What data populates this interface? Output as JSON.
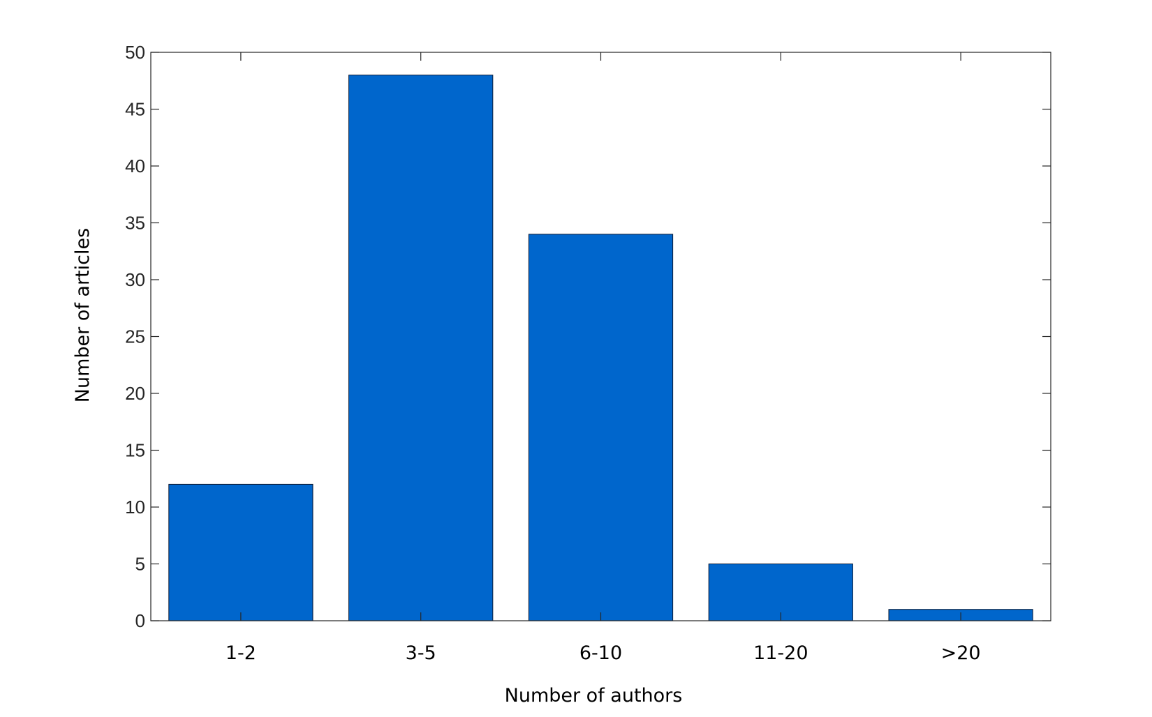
{
  "chart_data": {
    "type": "bar",
    "title": "",
    "xlabel": "Number of authors",
    "ylabel": "Number of articles",
    "categories": [
      "1-2",
      "3-5",
      "6-10",
      "11-20",
      ">20"
    ],
    "values": [
      12,
      48,
      34,
      5,
      1
    ],
    "ylim": [
      0,
      50
    ],
    "yticks": [
      0,
      5,
      10,
      15,
      20,
      25,
      30,
      35,
      40,
      45,
      50
    ],
    "yticklabels": [
      "0",
      "5",
      "10",
      "15",
      "20",
      "25",
      "30",
      "35",
      "40",
      "45",
      "50"
    ],
    "grid": false,
    "legend": "none",
    "bar_color": "#0066cc",
    "bar_edge_color": "#0d1a33",
    "axis_color": "#262626"
  }
}
